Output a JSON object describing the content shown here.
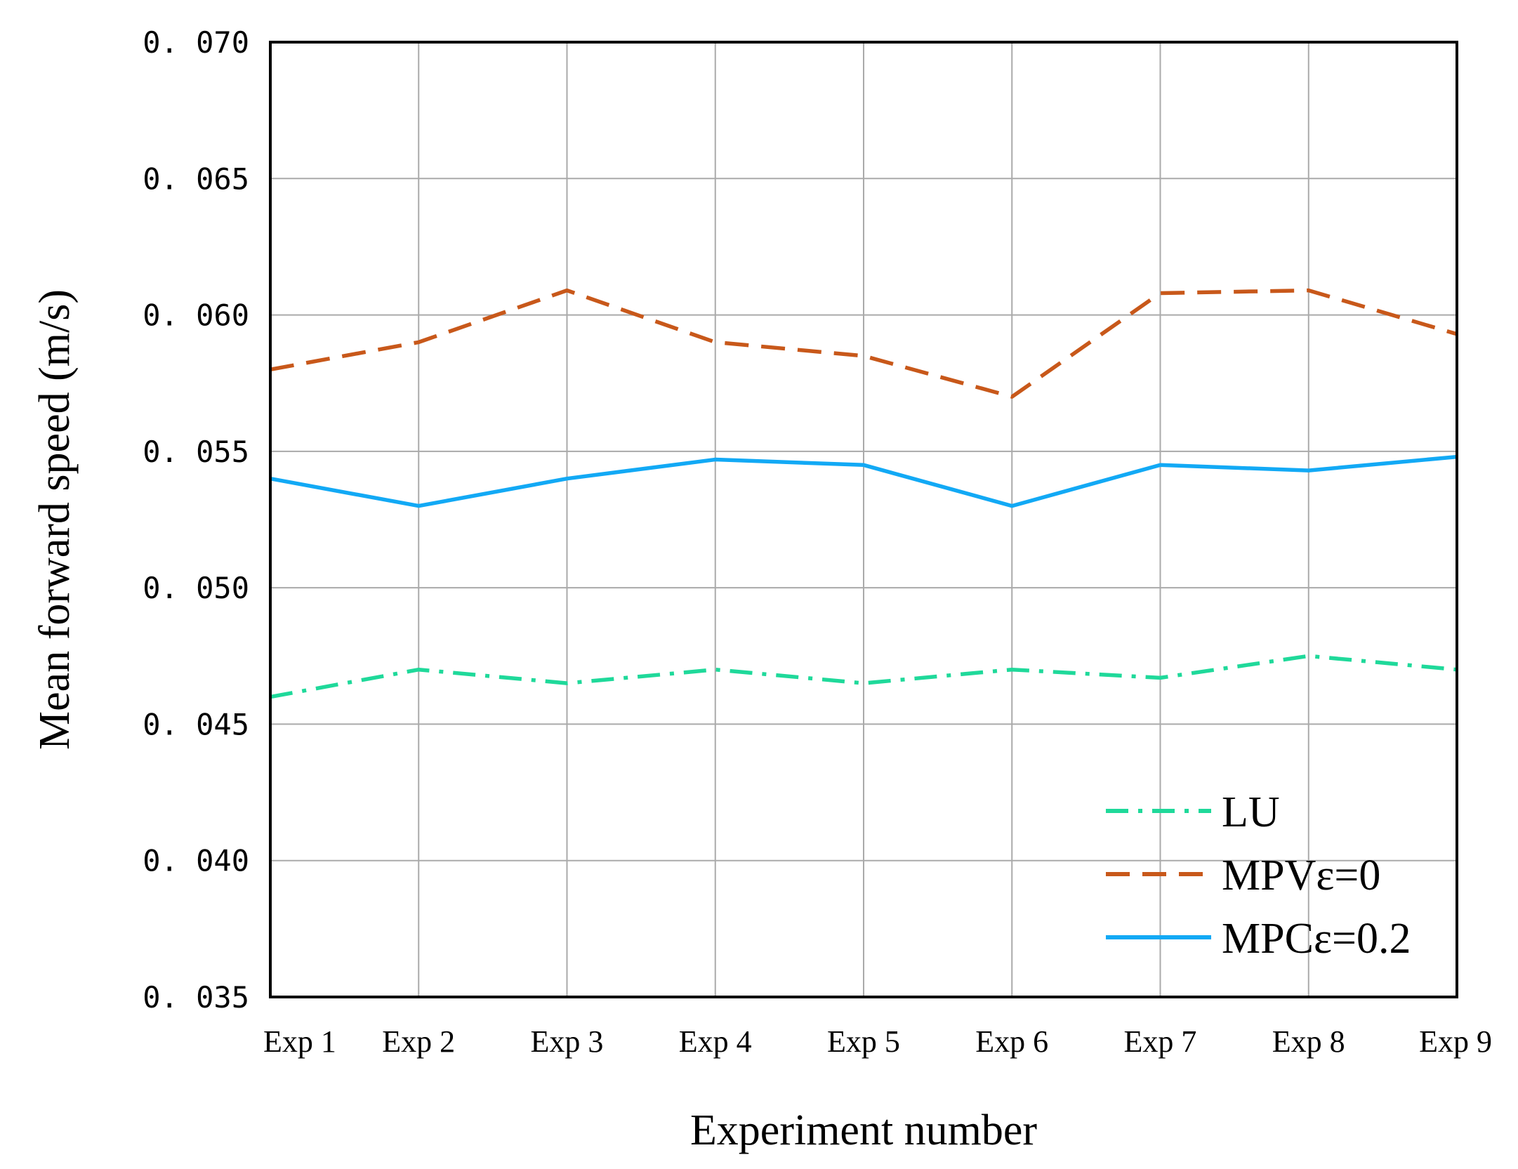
{
  "chart_data": {
    "type": "line",
    "title": "",
    "xlabel": "Experiment number",
    "ylabel": "Mean forward speed (m/s)",
    "categories": [
      "Exp 1",
      "Exp 2",
      "Exp 3",
      "Exp 4",
      "Exp 5",
      "Exp 6",
      "Exp 7",
      "Exp 8",
      "Exp 9"
    ],
    "ylim": [
      0.035,
      0.07
    ],
    "yticks": [
      0.035,
      0.04,
      0.045,
      0.05,
      0.055,
      0.06,
      0.065,
      0.07
    ],
    "ytick_labels": [
      "0. 035",
      "0. 040",
      "0. 045",
      "0. 050",
      "0. 055",
      "0. 060",
      "0. 065",
      "0. 070"
    ],
    "grid": true,
    "legend_position": "bottom-right",
    "series": [
      {
        "name": "LU",
        "values": [
          0.046,
          0.047,
          0.0465,
          0.047,
          0.0465,
          0.047,
          0.0467,
          0.0475,
          0.047
        ],
        "color": "#1fd99a",
        "style": "dashdot"
      },
      {
        "name": "MPVε=0",
        "values": [
          0.058,
          0.059,
          0.0609,
          0.059,
          0.0585,
          0.057,
          0.0608,
          0.0609,
          0.0593
        ],
        "color": "#c8581a",
        "style": "dashed"
      },
      {
        "name": "MPCε=0.2",
        "values": [
          0.054,
          0.053,
          0.054,
          0.0547,
          0.0545,
          0.053,
          0.0545,
          0.0543,
          0.0548
        ],
        "color": "#12a9f5",
        "style": "solid"
      }
    ]
  }
}
